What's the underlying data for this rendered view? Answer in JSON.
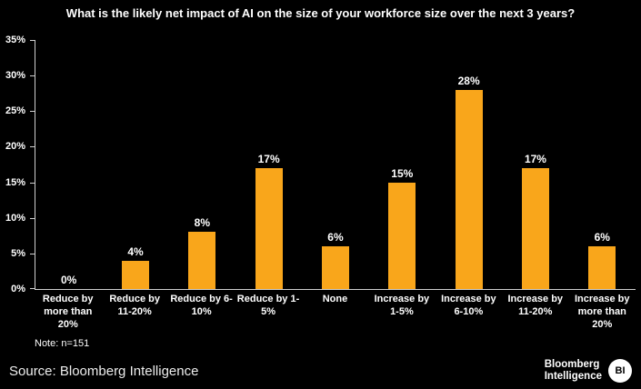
{
  "chart_data": {
    "type": "bar",
    "title": "What is the likely net impact of AI on the size of your workforce size over the next 3 years?",
    "categories": [
      "Reduce by more than 20%",
      "Reduce by 11-20%",
      "Reduce by 6-10%",
      "Reduce by 1-5%",
      "None",
      "Increase by 1-5%",
      "Increase by 6-10%",
      "Increase by 11-20%",
      "Increase by more than 20%"
    ],
    "values": [
      0,
      4,
      8,
      17,
      6,
      15,
      28,
      17,
      6
    ],
    "value_labels": [
      "0%",
      "4%",
      "8%",
      "17%",
      "6%",
      "15%",
      "28%",
      "17%",
      "6%"
    ],
    "ylim": [
      0,
      35
    ],
    "ytick_step": 5,
    "ytick_labels": [
      "35%",
      "30%",
      "25%",
      "20%",
      "15%",
      "10%",
      "5%",
      "0%"
    ],
    "grid": false,
    "legend": false,
    "bar_color": "#F9A61B",
    "axis_color": "#CFCFCF",
    "background_color": "#000000",
    "text_color": "#FFFFFF"
  },
  "note": "Note: n=151",
  "footer": {
    "source": "Source: Bloomberg Intelligence",
    "brand_line1": "Bloomberg",
    "brand_line2": "Intelligence",
    "brand_badge": "BI"
  }
}
